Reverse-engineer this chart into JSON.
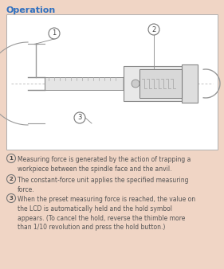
{
  "title": "Operation",
  "title_color": "#3070c0",
  "bg_color": "#f0d5c5",
  "box_bg": "#ffffff",
  "text_color": "#555555",
  "items": [
    {
      "num": "1",
      "text": "Measuring force is generated by the action of trapping a\nworkpiece between the spindle face and the anvil."
    },
    {
      "num": "2",
      "text": "The constant-force unit applies the specified measuring\nforce."
    },
    {
      "num": "3",
      "text": "When the preset measuring force is reached, the value on\nthe LCD is automatically held and the hold symbol\nappears. (To cancel the hold, reverse the thimble more\nthan 1/10 revolution and press the hold button.)"
    }
  ],
  "figsize": [
    2.81,
    3.38
  ],
  "dpi": 100
}
